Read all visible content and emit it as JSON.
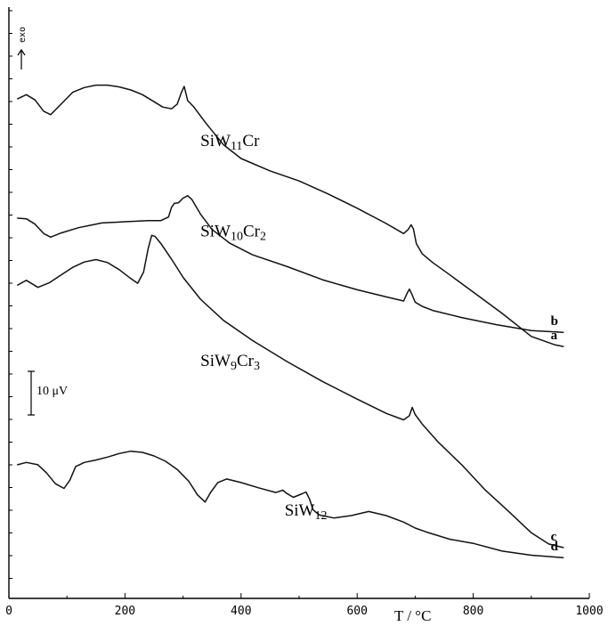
{
  "chart_data": {
    "type": "line",
    "title": "",
    "xlabel": "T / °C",
    "ylabel": "",
    "x_ticks": [
      "0",
      "200",
      "400",
      "600",
      "800",
      "1000"
    ],
    "xlim": [
      0,
      1000
    ],
    "ylim": [
      0,
      100
    ],
    "grid": false,
    "exo_label": "exo",
    "scale_bar": "10 μV",
    "series": [
      {
        "name": "SiW11Cr",
        "letter": "a",
        "formula": [
          "SiW",
          "11",
          "Cr",
          ""
        ],
        "label_at": [
          330,
          76.5
        ],
        "x": [
          15,
          30,
          45,
          60,
          72,
          90,
          110,
          130,
          150,
          170,
          190,
          210,
          230,
          250,
          265,
          280,
          290,
          297,
          302,
          308,
          318,
          340,
          370,
          400,
          450,
          500,
          550,
          600,
          650,
          680,
          688,
          693,
          697,
          702,
          712,
          730,
          760,
          800,
          850,
          900,
          940,
          955
        ],
        "y": [
          84.5,
          85.2,
          84.3,
          82.4,
          81.8,
          83.6,
          85.6,
          86.4,
          86.8,
          86.8,
          86.5,
          86.0,
          85.2,
          84.0,
          83.1,
          82.8,
          83.6,
          85.5,
          86.6,
          84.2,
          83.2,
          80.3,
          76.7,
          74.4,
          72.3,
          70.6,
          68.4,
          66.0,
          63.4,
          61.7,
          62.4,
          63.2,
          62.5,
          60.0,
          58.3,
          56.8,
          54.7,
          51.8,
          48.2,
          44.3,
          42.9,
          42.6
        ]
      },
      {
        "name": "SiW10Cr2",
        "letter": "b",
        "formula": [
          "SiW",
          "10",
          "Cr",
          "2"
        ],
        "label_at": [
          330,
          61.2
        ],
        "x": [
          15,
          30,
          45,
          60,
          72,
          90,
          120,
          160,
          200,
          240,
          262,
          275,
          280,
          285,
          292,
          300,
          308,
          315,
          330,
          350,
          380,
          420,
          480,
          540,
          600,
          650,
          680,
          686,
          690,
          694,
          700,
          712,
          730,
          780,
          840,
          900,
          955
        ],
        "y": [
          64.3,
          64.2,
          63.3,
          61.7,
          61.1,
          61.8,
          62.7,
          63.5,
          63.7,
          63.9,
          63.9,
          64.5,
          66.1,
          66.8,
          66.9,
          67.7,
          68.1,
          67.5,
          65.0,
          62.4,
          60.1,
          58.1,
          56.1,
          53.9,
          52.2,
          51.0,
          50.3,
          51.6,
          52.3,
          51.5,
          50.1,
          49.4,
          48.7,
          47.5,
          46.3,
          45.3,
          45.0
        ]
      },
      {
        "name": "SiW9Cr3",
        "letter": "c",
        "formula": [
          "SiW",
          "9",
          "Cr",
          "3"
        ],
        "label_at": [
          330,
          39.3
        ],
        "x": [
          15,
          30,
          50,
          70,
          90,
          110,
          130,
          150,
          170,
          190,
          210,
          222,
          232,
          240,
          246,
          252,
          262,
          280,
          300,
          330,
          370,
          420,
          480,
          540,
          600,
          650,
          680,
          690,
          695,
          700,
          712,
          740,
          780,
          820,
          860,
          900,
          930,
          955
        ],
        "y": [
          53.0,
          53.8,
          52.6,
          53.4,
          54.7,
          56.0,
          56.9,
          57.3,
          56.8,
          55.6,
          54.1,
          53.3,
          55.2,
          59.2,
          61.4,
          61.2,
          60.0,
          57.4,
          54.3,
          50.6,
          47.0,
          43.6,
          40.0,
          36.7,
          33.7,
          31.3,
          30.2,
          30.9,
          32.3,
          31.1,
          29.5,
          26.4,
          22.6,
          18.4,
          14.8,
          11.1,
          9.2,
          8.6
        ]
      },
      {
        "name": "SiW12",
        "letter": "d",
        "formula": [
          "SiW",
          "12",
          "",
          ""
        ],
        "label_at": [
          475,
          14.0
        ],
        "x": [
          15,
          30,
          50,
          65,
          80,
          95,
          105,
          115,
          130,
          150,
          170,
          190,
          210,
          230,
          250,
          270,
          290,
          310,
          325,
          338,
          348,
          360,
          375,
          400,
          430,
          460,
          472,
          478,
          490,
          505,
          512,
          518,
          524,
          535,
          560,
          590,
          620,
          650,
          680,
          700,
          720,
          760,
          800,
          850,
          900,
          955
        ],
        "y": [
          22.6,
          23.0,
          22.6,
          21.2,
          19.4,
          18.6,
          20.0,
          22.3,
          23.0,
          23.4,
          23.9,
          24.5,
          24.9,
          24.7,
          24.1,
          23.2,
          21.8,
          19.8,
          17.5,
          16.3,
          18.0,
          19.6,
          20.2,
          19.6,
          18.7,
          17.9,
          18.3,
          17.8,
          17.1,
          17.7,
          18.0,
          16.8,
          15.0,
          14.1,
          13.6,
          14.0,
          14.7,
          14.0,
          12.9,
          11.9,
          11.2,
          10.0,
          9.3,
          8.0,
          7.3,
          6.9
        ]
      }
    ]
  }
}
